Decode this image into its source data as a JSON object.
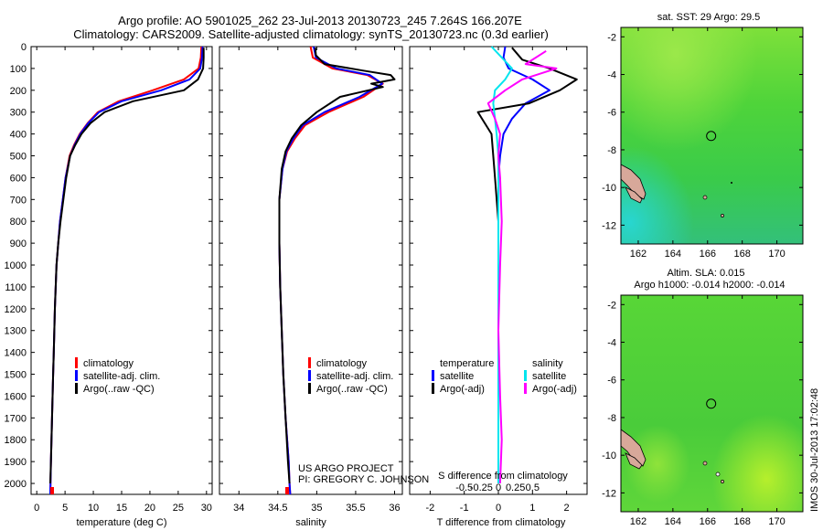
{
  "title_line1": "Argo profile: AO 5901025_262 23-Jul-2013 20130723_245 7.264S 166.207E",
  "title_line2": "Climatology: CARS2009. Satellite-adjusted climatology: synTS_20130723.nc (0.3d earlier)",
  "project_line1": "US ARGO PROJECT",
  "project_line2": "PI: GREGORY C. JOHNSON",
  "timestamp": "IMOS 30-Jul-2013 17:02:48",
  "chart_data": [
    {
      "type": "line",
      "panel": "temperature",
      "xlabel": "temperature (deg C)",
      "xlim": [
        -1,
        31
      ],
      "xticks": [
        0,
        5,
        10,
        15,
        20,
        25,
        30
      ],
      "ylim": [
        2050,
        0
      ],
      "yticks": [
        0,
        100,
        200,
        300,
        400,
        500,
        600,
        700,
        800,
        900,
        1000,
        1100,
        1200,
        1300,
        1400,
        1500,
        1600,
        1700,
        1800,
        1900,
        2000
      ],
      "legend": [
        "climatology",
        "satellite-adj. clim.",
        "Argo(..raw -QC)"
      ],
      "legend_position": "lower-center",
      "series": [
        {
          "name": "climatology",
          "color": "#ff0000",
          "x": [
            29.1,
            29.0,
            28.6,
            26.0,
            20.5,
            14.5,
            10.8,
            9.0,
            7.6,
            6.6,
            5.8,
            5.1,
            4.6,
            4.1,
            3.8,
            3.5,
            3.2,
            3.0,
            2.9,
            2.7,
            2.6,
            2.5,
            2.4
          ],
          "y": [
            0,
            50,
            100,
            150,
            200,
            250,
            300,
            350,
            400,
            450,
            500,
            600,
            700,
            800,
            900,
            1000,
            1200,
            1400,
            1500,
            1700,
            1800,
            1900,
            2050
          ]
        },
        {
          "name": "satellite-adj. clim.",
          "color": "#0000ff",
          "x": [
            29.3,
            29.2,
            28.9,
            27.0,
            22.0,
            15.0,
            11.0,
            9.1,
            7.7,
            6.7,
            5.9,
            5.1,
            4.6,
            4.1,
            3.8,
            3.5,
            3.2,
            3.0,
            2.9,
            2.7,
            2.6,
            2.5,
            2.4
          ],
          "y": [
            0,
            50,
            100,
            150,
            200,
            250,
            300,
            350,
            400,
            450,
            500,
            600,
            700,
            800,
            900,
            1000,
            1200,
            1400,
            1500,
            1700,
            1800,
            1900,
            2050
          ]
        },
        {
          "name": "Argo(..raw -QC)",
          "color": "#000000",
          "x": [
            29.5,
            29.5,
            29.4,
            28.5,
            26.0,
            17.0,
            12.0,
            9.5,
            7.9,
            6.8,
            5.9,
            5.2,
            4.7,
            4.2,
            3.8,
            3.5,
            3.2,
            3.0,
            2.9,
            2.7,
            2.6,
            2.5,
            2.4
          ],
          "y": [
            5,
            50,
            100,
            150,
            200,
            250,
            300,
            350,
            400,
            450,
            500,
            600,
            700,
            800,
            900,
            1000,
            1200,
            1400,
            1500,
            1700,
            1800,
            1900,
            2000
          ]
        }
      ]
    },
    {
      "type": "line",
      "panel": "salinity",
      "xlabel": "salinity",
      "xlim": [
        33.75,
        36.1
      ],
      "xticks": [
        34,
        34.5,
        35,
        35.5,
        36
      ],
      "legend": [
        "climatology",
        "satellite-adj. clim.",
        "Argo(..raw -QC)"
      ],
      "legend_position": "lower-center",
      "series": [
        {
          "name": "climatology",
          "color": "#ff0000",
          "x": [
            34.92,
            34.95,
            35.2,
            35.65,
            35.85,
            35.6,
            35.15,
            34.85,
            34.72,
            34.62,
            34.56,
            34.52,
            34.52,
            34.53,
            34.55,
            34.57,
            34.6,
            34.62,
            34.64,
            34.65,
            34.66
          ],
          "y": [
            0,
            50,
            100,
            130,
            170,
            230,
            300,
            360,
            420,
            480,
            560,
            700,
            900,
            1100,
            1300,
            1500,
            1700,
            1800,
            1900,
            2000,
            2050
          ]
        },
        {
          "name": "satellite-adj. clim.",
          "color": "#0000ff",
          "x": [
            34.96,
            34.99,
            35.25,
            35.68,
            35.84,
            35.55,
            35.1,
            34.82,
            34.7,
            34.61,
            34.56,
            34.52,
            34.52,
            34.53,
            34.55,
            34.57,
            34.6,
            34.62,
            34.64,
            34.65,
            34.66
          ],
          "y": [
            0,
            50,
            100,
            130,
            170,
            230,
            300,
            360,
            420,
            480,
            560,
            700,
            900,
            1100,
            1300,
            1500,
            1700,
            1800,
            1900,
            2000,
            2050
          ]
        },
        {
          "name": "Argo(..raw -QC)",
          "color": "#000000",
          "x": [
            34.98,
            34.99,
            35.1,
            35.6,
            35.95,
            36.0,
            35.7,
            35.85,
            35.3,
            35.0,
            34.8,
            34.68,
            34.6,
            34.55,
            34.52,
            34.52,
            34.53,
            34.55,
            34.57,
            34.6,
            34.63,
            34.65
          ],
          "y": [
            5,
            40,
            80,
            110,
            130,
            150,
            170,
            185,
            230,
            300,
            360,
            420,
            480,
            560,
            700,
            900,
            1100,
            1300,
            1500,
            1700,
            1900,
            2000
          ]
        }
      ]
    },
    {
      "type": "line",
      "panel": "difference",
      "xlabel": "T difference from climatology",
      "xlabel2": "S difference from climatology",
      "xlim": [
        -2.6,
        2.6
      ],
      "xticks": [
        -2,
        -1,
        0,
        1,
        2
      ],
      "xticks_top": [
        "-0.5",
        "-0.25",
        "0",
        "0.25",
        "0.5"
      ],
      "legend_groups": [
        {
          "title": "temperature",
          "items": [
            "satellite",
            "Argo(-adj)"
          ]
        },
        {
          "title": "salinity",
          "items": [
            "satellite",
            "Argo(-adj)"
          ]
        }
      ],
      "series": [
        {
          "name": "temperature satellite",
          "color": "#0000ff",
          "x": [
            0.2,
            0.15,
            0.3,
            1.0,
            1.5,
            0.8,
            0.4,
            0.15,
            0.05,
            0.0,
            0.0,
            0.0,
            0.0,
            0.0,
            0.0,
            0.0
          ],
          "y": [
            0,
            50,
            100,
            150,
            200,
            260,
            330,
            400,
            500,
            600,
            800,
            1000,
            1300,
            1600,
            1800,
            2000
          ]
        },
        {
          "name": "temperature Argo(-adj)",
          "color": "#000000",
          "x": [
            0.4,
            0.7,
            1.5,
            2.3,
            1.8,
            0.9,
            -0.6,
            -0.2,
            -0.15,
            -0.1,
            0.0,
            0.0,
            0.0,
            0.0,
            0.0,
            0.0
          ],
          "y": [
            5,
            60,
            100,
            150,
            200,
            260,
            300,
            400,
            500,
            600,
            800,
            1000,
            1300,
            1600,
            1800,
            2000
          ]
        },
        {
          "name": "salinity satellite",
          "color": "#00e5ee",
          "x": [
            -0.2,
            0.1,
            0.4,
            0.2,
            -0.1,
            -0.15,
            -0.1,
            -0.05,
            0.0,
            0.0,
            0.0,
            0.0,
            0.0,
            0.0,
            0.0,
            0.0
          ],
          "y": [
            0,
            50,
            100,
            150,
            200,
            260,
            330,
            400,
            500,
            600,
            800,
            1000,
            1300,
            1600,
            1800,
            2000
          ]
        },
        {
          "name": "salinity Argo(-adj)",
          "color": "#ff00ff",
          "x": [
            1.4,
            0.8,
            1.7,
            0.7,
            0.2,
            -0.3,
            -0.1,
            0.05,
            0.0,
            0.05,
            0.1,
            0.05,
            0.0,
            0.05,
            0.1,
            0.05
          ],
          "y": [
            20,
            80,
            100,
            150,
            200,
            260,
            330,
            400,
            500,
            600,
            800,
            1000,
            1300,
            1600,
            1800,
            2000
          ]
        }
      ]
    },
    {
      "type": "heatmap",
      "panel": "sst-map",
      "title": "sat. SST: 29  Argo: 29.5",
      "xlim": [
        161,
        171.5
      ],
      "ylim": [
        -13,
        -1.5
      ],
      "xticks": [
        162,
        164,
        166,
        168,
        170
      ],
      "yticks": [
        -2,
        -4,
        -6,
        -8,
        -10,
        -12
      ],
      "marker": {
        "lon": 166.207,
        "lat": -7.264
      }
    },
    {
      "type": "heatmap",
      "panel": "sla-map",
      "title_line1": "Altim. SLA: 0.015",
      "title_line2": "Argo h1000: -0.014 h2000: -0.014",
      "xlim": [
        161,
        171.5
      ],
      "ylim": [
        -13,
        -1.5
      ],
      "xticks": [
        162,
        164,
        166,
        168,
        170
      ],
      "yticks": [
        -2,
        -4,
        -6,
        -8,
        -10,
        -12
      ],
      "marker": {
        "lon": 166.207,
        "lat": -7.264
      }
    }
  ]
}
